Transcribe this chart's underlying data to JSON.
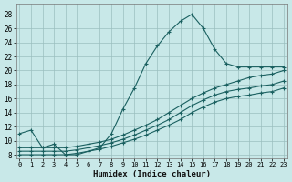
{
  "xlabel": "Humidex (Indice chaleur)",
  "bg_color": "#c8e8e8",
  "grid_color": "#9bbfbf",
  "line_color": "#1a6060",
  "xlim": [
    -0.3,
    23.3
  ],
  "ylim": [
    7.5,
    29.5
  ],
  "xticks": [
    0,
    1,
    2,
    3,
    4,
    5,
    6,
    7,
    8,
    9,
    10,
    11,
    12,
    13,
    14,
    15,
    16,
    17,
    18,
    19,
    20,
    21,
    22,
    23
  ],
  "yticks": [
    8,
    10,
    12,
    14,
    16,
    18,
    20,
    22,
    24,
    26,
    28
  ],
  "curve1_x": [
    0,
    1,
    2,
    3,
    4,
    5,
    6,
    7,
    8,
    9,
    10,
    11,
    12,
    13,
    14,
    15,
    16,
    17,
    18,
    19,
    20,
    21,
    22,
    23
  ],
  "curve1_y": [
    11.0,
    11.5,
    9.0,
    9.5,
    8.0,
    8.0,
    8.5,
    9.0,
    11.0,
    14.5,
    17.5,
    21.0,
    23.5,
    25.5,
    27.0,
    28.0,
    26.0,
    23.0,
    21.0,
    20.5,
    20.5,
    20.5,
    20.5,
    20.5
  ],
  "curve2_x": [
    0,
    1,
    2,
    3,
    4,
    5,
    6,
    7,
    8,
    9,
    10,
    11,
    12,
    13,
    14,
    15,
    16,
    17,
    18,
    19,
    20,
    21,
    22,
    23
  ],
  "curve2_y": [
    9.0,
    9.0,
    9.0,
    9.0,
    9.0,
    9.2,
    9.5,
    9.8,
    10.2,
    10.8,
    11.5,
    12.2,
    13.0,
    14.0,
    15.0,
    16.0,
    16.8,
    17.5,
    18.0,
    18.5,
    19.0,
    19.3,
    19.5,
    20.0
  ],
  "curve3_x": [
    0,
    1,
    2,
    3,
    4,
    5,
    6,
    7,
    8,
    9,
    10,
    11,
    12,
    13,
    14,
    15,
    16,
    17,
    18,
    19,
    20,
    21,
    22,
    23
  ],
  "curve3_y": [
    8.5,
    8.5,
    8.5,
    8.5,
    8.5,
    8.7,
    9.0,
    9.3,
    9.7,
    10.2,
    10.8,
    11.5,
    12.2,
    13.0,
    14.0,
    15.0,
    15.8,
    16.5,
    17.0,
    17.3,
    17.5,
    17.8,
    18.0,
    18.5
  ],
  "curve4_x": [
    0,
    1,
    2,
    3,
    4,
    5,
    6,
    7,
    8,
    9,
    10,
    11,
    12,
    13,
    14,
    15,
    16,
    17,
    18,
    19,
    20,
    21,
    22,
    23
  ],
  "curve4_y": [
    8.0,
    8.0,
    8.0,
    8.0,
    8.0,
    8.2,
    8.5,
    8.8,
    9.2,
    9.7,
    10.2,
    10.8,
    11.5,
    12.2,
    13.0,
    14.0,
    14.8,
    15.5,
    16.0,
    16.3,
    16.5,
    16.8,
    17.0,
    17.5
  ]
}
